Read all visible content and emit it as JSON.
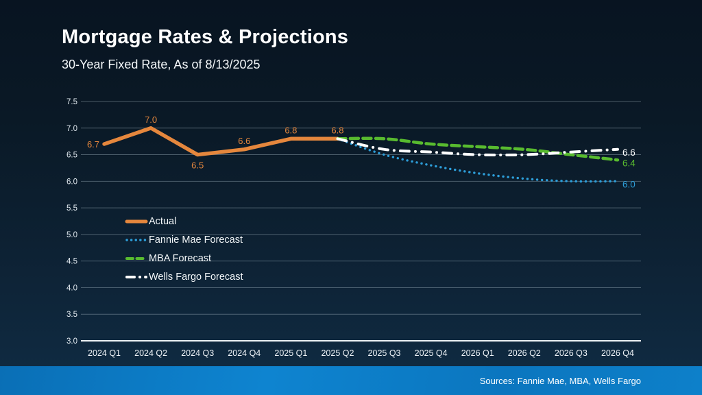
{
  "slide": {
    "title": "Mortgage Rates & Projections",
    "subtitle": "30-Year Fixed Rate, As of 8/13/2025",
    "footer_sources": "Sources: Fannie Mae, MBA, Wells Fargo"
  },
  "colors": {
    "background_top": "#081421",
    "background_bottom": "#102c44",
    "footer_bar_blue": "#0d80ca",
    "gridline": "rgba(185,202,214,0.38)",
    "axis_line": "#eef3f6",
    "tick_text": "#e3ebf1",
    "actual_orange": "#e5873d",
    "fannie_mae_blue": "#2d9ed9",
    "mba_green": "#58bb2f",
    "wells_fargo_white": "#ffffff"
  },
  "chart_data": {
    "type": "line",
    "title": "Mortgage Rates & Projections",
    "subtitle": "30-Year Fixed Rate, As of 8/13/2025",
    "xlabel": "",
    "ylabel": "",
    "grid": true,
    "legend_position": "center-left",
    "categories": [
      "2024 Q1",
      "2024 Q2",
      "2024 Q3",
      "2024 Q4",
      "2025 Q1",
      "2025 Q2",
      "2025 Q3",
      "2025 Q4",
      "2026 Q1",
      "2026 Q2",
      "2026 Q3",
      "2026 Q4"
    ],
    "ylim": [
      3.0,
      7.5
    ],
    "ytick_labels": [
      "3.0",
      "3.5",
      "4.0",
      "4.5",
      "5.0",
      "5.5",
      "6.0",
      "6.5",
      "7.0",
      "7.5"
    ],
    "series": [
      {
        "name": "Actual",
        "color": "#e5873d",
        "line_style": "solid",
        "smooth": false,
        "values": [
          6.7,
          7.0,
          6.5,
          6.6,
          6.8,
          6.8,
          null,
          null,
          null,
          null,
          null,
          null
        ],
        "point_labels": [
          {
            "index": 0,
            "text": "6.7",
            "placement": "left"
          },
          {
            "index": 1,
            "text": "7.0",
            "placement": "above"
          },
          {
            "index": 2,
            "text": "6.5",
            "placement": "below"
          },
          {
            "index": 3,
            "text": "6.6",
            "placement": "above"
          },
          {
            "index": 4,
            "text": "6.8",
            "placement": "above"
          },
          {
            "index": 5,
            "text": "6.8",
            "placement": "above"
          }
        ]
      },
      {
        "name": "Fannie Mae Forecast",
        "color": "#2d9ed9",
        "line_style": "dotted",
        "smooth": true,
        "values": [
          null,
          null,
          null,
          null,
          null,
          6.8,
          6.5,
          6.3,
          6.15,
          6.05,
          6.0,
          6.0
        ],
        "end_label": "6.0"
      },
      {
        "name": "MBA Forecast",
        "color": "#58bb2f",
        "line_style": "dashed",
        "smooth": true,
        "values": [
          null,
          null,
          null,
          null,
          null,
          6.8,
          6.8,
          6.7,
          6.65,
          6.6,
          6.5,
          6.4
        ],
        "end_label": "6.4"
      },
      {
        "name": "Wells Fargo Forecast",
        "color": "#ffffff",
        "line_style": "dash-dot",
        "smooth": true,
        "values": [
          null,
          null,
          null,
          null,
          null,
          6.8,
          6.6,
          6.55,
          6.5,
          6.5,
          6.55,
          6.6
        ],
        "end_label": "6.6"
      }
    ]
  }
}
